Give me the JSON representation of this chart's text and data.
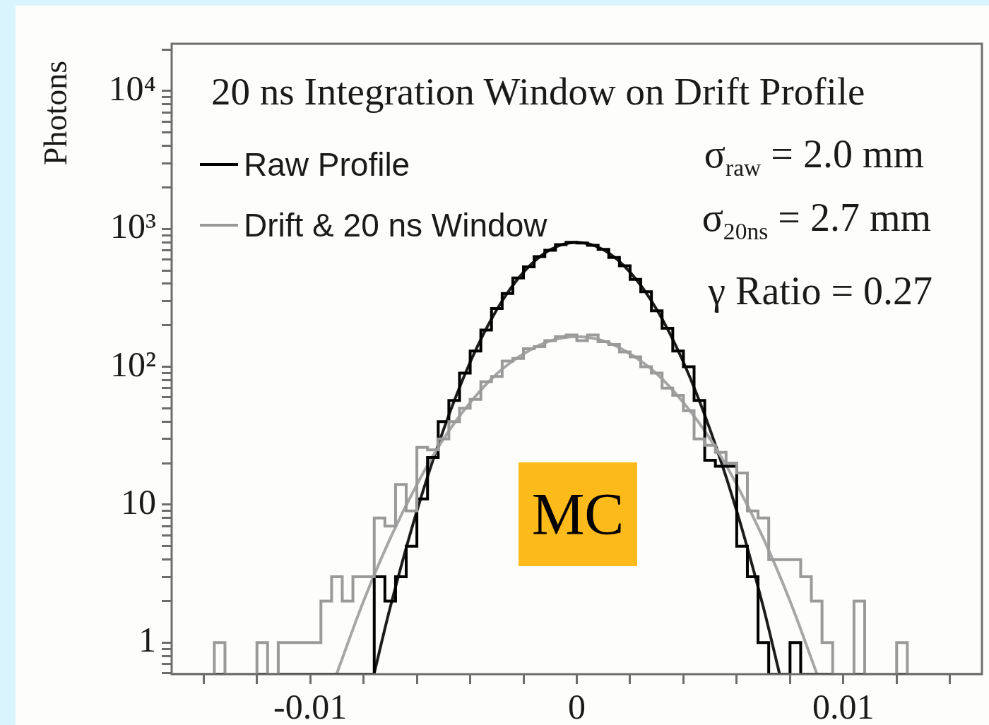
{
  "chart_data": {
    "type": "histogram",
    "title": "20 ns Integration Window on Drift Profile",
    "ylabel": "Photons",
    "log": "y",
    "legend": "top left",
    "annotations": [
      "σ$_{raw}$ = 2.0 mm",
      "σ$_{20ns}$ = 2.7 mm",
      "γ Ratio = 0.27",
      "MC"
    ],
    "xlim": [
      -0.0152,
      0.0152
    ],
    "ylim": [
      0.59,
      22000
    ],
    "xticks": [
      {
        "value": -0.014,
        "label": null
      },
      {
        "value": -0.012,
        "label": null
      },
      -0.01,
      {
        "value": -0.008,
        "label": null
      },
      {
        "value": -0.006,
        "label": null
      },
      {
        "value": -0.004,
        "label": null
      },
      {
        "value": -0.002,
        "label": null
      },
      0,
      {
        "value": 0.002,
        "label": null
      },
      {
        "value": 0.004,
        "label": null
      },
      {
        "value": 0.006,
        "label": null
      },
      {
        "value": 0.008,
        "label": null
      },
      0.01,
      {
        "value": 0.012,
        "label": null
      },
      {
        "value": 0.014,
        "label": null
      }
    ],
    "yticks": [
      {
        "value": 0.6,
        "label": null
      },
      {
        "value": 0.7,
        "label": null
      },
      {
        "value": 0.8,
        "label": null
      },
      {
        "value": 0.9,
        "label": null
      },
      1,
      {
        "value": 2,
        "label": null
      },
      {
        "value": 3,
        "label": null
      },
      {
        "value": 4,
        "label": null
      },
      {
        "value": 5,
        "label": null
      },
      {
        "value": 6,
        "label": null
      },
      {
        "value": 7,
        "label": null
      },
      {
        "value": 8,
        "label": null
      },
      {
        "value": 9,
        "label": null
      },
      10,
      {
        "value": 20,
        "label": null
      },
      {
        "value": 30,
        "label": null
      },
      {
        "value": 40,
        "label": null
      },
      {
        "value": 50,
        "label": null
      },
      {
        "value": 60,
        "label": null
      },
      {
        "value": 70,
        "label": null
      },
      {
        "value": 80,
        "label": null
      },
      {
        "value": 90,
        "label": null
      },
      {
        "value": 100,
        "label": "10²"
      },
      {
        "value": 200,
        "label": null
      },
      {
        "value": 300,
        "label": null
      },
      {
        "value": 400,
        "label": null
      },
      {
        "value": 500,
        "label": null
      },
      {
        "value": 600,
        "label": null
      },
      {
        "value": 700,
        "label": null
      },
      {
        "value": 800,
        "label": null
      },
      {
        "value": 900,
        "label": null
      },
      {
        "value": 1000,
        "label": "10³"
      },
      {
        "value": 2000,
        "label": null
      },
      {
        "value": 3000,
        "label": null
      },
      {
        "value": 4000,
        "label": null
      },
      {
        "value": 5000,
        "label": null
      },
      {
        "value": 6000,
        "label": null
      },
      {
        "value": 7000,
        "label": null
      },
      {
        "value": 8000,
        "label": null
      },
      {
        "value": 9000,
        "label": null
      },
      {
        "value": 10000,
        "label": "10⁴"
      },
      {
        "value": 20000,
        "label": null
      }
    ],
    "bins": [
      -0.0152,
      -0.0148,
      -0.0144,
      -0.014,
      -0.0136,
      -0.0132,
      -0.0128,
      -0.0124,
      -0.012,
      -0.0116,
      -0.0112,
      -0.0108,
      -0.0104,
      -0.01,
      -0.0096,
      -0.0092,
      -0.0088,
      -0.0084,
      -0.008,
      -0.0076,
      -0.0072,
      -0.0068,
      -0.0064,
      -0.006,
      -0.0056,
      -0.0052,
      -0.0048,
      -0.0044,
      -0.004,
      -0.0036,
      -0.0032,
      -0.0028,
      -0.0024,
      -0.002,
      -0.0016,
      -0.0012,
      -0.0008,
      -0.0004,
      0,
      0.0004,
      0.0008,
      0.0012,
      0.0016,
      0.002,
      0.0024,
      0.0028,
      0.0032,
      0.0036,
      0.004,
      0.0044,
      0.0048,
      0.0052,
      0.0056,
      0.006,
      0.0064,
      0.0068,
      0.0072,
      0.0076,
      0.008,
      0.0084,
      0.0088,
      0.0092,
      0.0096,
      0.01,
      0.0104,
      0.0108,
      0.0112,
      0.0116,
      0.012,
      0.0124,
      0.0128,
      0.0132,
      0.0136,
      0.014,
      0.0144,
      0.0148,
      0.0152
    ],
    "series": [
      {
        "type": "histogram",
        "name": "Drift & 20 ns Window",
        "color": "#9a9a9a",
        "values": [
          null,
          null,
          null,
          null,
          1,
          null,
          null,
          null,
          1,
          null,
          1,
          1,
          1,
          1,
          2,
          3,
          2,
          3,
          3,
          8,
          7,
          14,
          9,
          26,
          25,
          30,
          40,
          50,
          58,
          78,
          85,
          110,
          115,
          135,
          140,
          155,
          165,
          170,
          155,
          170,
          152,
          145,
          128,
          118,
          100,
          90,
          70,
          62,
          48,
          30,
          27,
          24,
          20,
          17,
          9,
          8,
          4,
          4,
          4,
          3,
          2,
          1,
          null,
          null,
          2,
          null,
          null,
          null,
          1,
          null,
          null,
          null,
          null,
          null,
          null,
          null
        ]
      },
      {
        "type": "histogram",
        "name": "Raw Profile",
        "color": "#000000",
        "values": [
          null,
          null,
          null,
          null,
          null,
          null,
          null,
          null,
          null,
          null,
          null,
          null,
          null,
          null,
          null,
          null,
          null,
          null,
          null,
          3,
          2,
          3,
          5,
          11,
          22,
          40,
          57,
          90,
          130,
          185,
          265,
          340,
          440,
          530,
          630,
          700,
          770,
          800,
          790,
          760,
          710,
          620,
          540,
          430,
          350,
          255,
          190,
          130,
          100,
          57,
          21,
          19,
          19,
          5,
          3,
          1,
          null,
          null,
          1,
          null,
          null,
          null,
          null,
          null,
          null,
          null,
          null,
          null,
          null,
          null,
          null,
          null,
          null,
          null,
          null,
          null
        ]
      },
      {
        "type": "line",
        "color": "#a6a6a6",
        "x": [
          -0.009,
          -0.008,
          -0.007,
          -0.006,
          -0.005,
          -0.004,
          -0.003,
          -0.002,
          -0.001,
          0,
          0.001,
          0.002,
          0.003,
          0.004,
          0.005,
          0.006,
          0.007,
          0.008,
          0.009
        ],
        "values": [
          0.6,
          2,
          5.7,
          14,
          30,
          55,
          89,
          124,
          154,
          165,
          154,
          124,
          89,
          55,
          30,
          14,
          5.7,
          2,
          0.6
        ]
      },
      {
        "type": "line",
        "color": "#1c1c1c",
        "x": [
          -0.0076,
          -0.007,
          -0.006,
          -0.005,
          -0.004,
          -0.003,
          -0.002,
          -0.001,
          0,
          0.001,
          0.002,
          0.003,
          0.004,
          0.005,
          0.006,
          0.007,
          0.0076
        ],
        "values": [
          0.6,
          1.8,
          9,
          35,
          108,
          260,
          485,
          706,
          800,
          706,
          485,
          260,
          108,
          35,
          9,
          1.8,
          0.6
        ]
      }
    ]
  }
}
